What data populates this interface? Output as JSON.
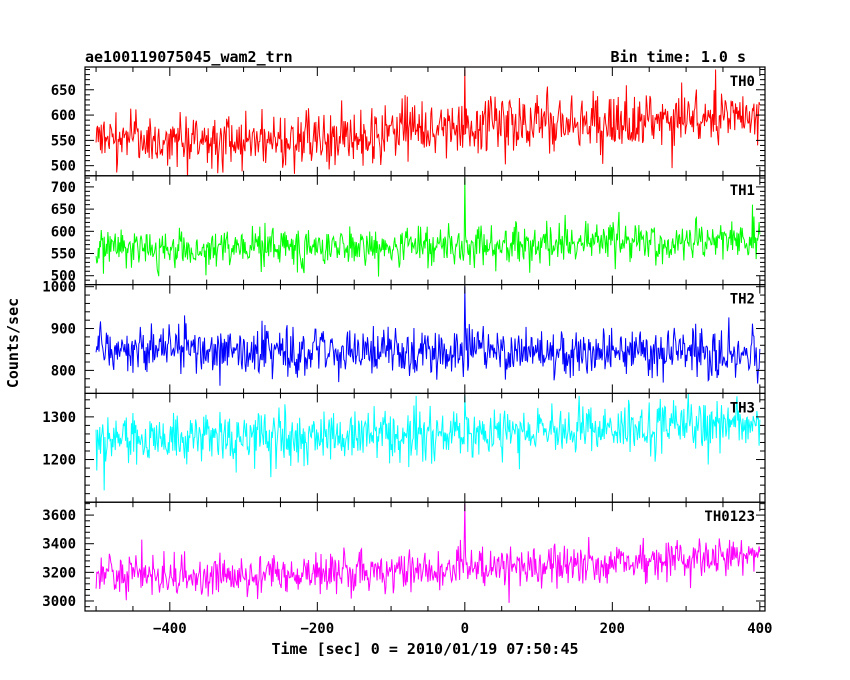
{
  "chart_data": {
    "type": "line",
    "title": "ae100119075045_wam2_trn",
    "subtitle": "Bin time: 1.0 s",
    "xlabel": "Time [sec] 0 = 2010/01/19 07:50:45",
    "ylabel": "Counts/sec",
    "xlim": [
      -515,
      407
    ],
    "x_ticks": [
      -400,
      -200,
      0,
      200,
      400
    ],
    "x_range_data": [
      -500,
      400
    ],
    "bin_time": 1.0,
    "grid": false,
    "panels": [
      {
        "name": "TH0",
        "color": "#ff0000",
        "ylim": [
          480,
          695
        ],
        "y_ticks": [
          500,
          550,
          600,
          650
        ],
        "baseline": [
          [
            -500,
            545
          ],
          [
            -200,
            550
          ],
          [
            0,
            575
          ],
          [
            200,
            585
          ],
          [
            400,
            595
          ]
        ],
        "noise": 28,
        "spikes": [
          [
            0,
            690
          ],
          [
            340,
            690
          ]
        ]
      },
      {
        "name": "TH1",
        "color": "#00ff00",
        "ylim": [
          480,
          725
        ],
        "y_ticks": [
          500,
          550,
          600,
          650,
          700
        ],
        "baseline": [
          [
            -500,
            560
          ],
          [
            -200,
            565
          ],
          [
            0,
            565
          ],
          [
            200,
            575
          ],
          [
            400,
            580
          ]
        ],
        "noise": 22,
        "spikes": [
          [
            0,
            720
          ],
          [
            390,
            660
          ]
        ]
      },
      {
        "name": "TH2",
        "color": "#0000ff",
        "ylim": [
          745,
          1005
        ],
        "y_ticks": [
          800,
          900,
          1000
        ],
        "baseline": [
          [
            -500,
            850
          ],
          [
            -200,
            845
          ],
          [
            0,
            845
          ],
          [
            200,
            845
          ],
          [
            400,
            840
          ]
        ],
        "noise": 28,
        "spikes": [
          [
            0,
            1000
          ]
        ]
      },
      {
        "name": "TH3",
        "color": "#00ffff",
        "ylim": [
          1100,
          1355
        ],
        "y_ticks": [
          1200,
          1300
        ],
        "baseline": [
          [
            -500,
            1245
          ],
          [
            -200,
            1255
          ],
          [
            0,
            1265
          ],
          [
            200,
            1275
          ],
          [
            400,
            1285
          ]
        ],
        "noise": 30,
        "spikes": [
          [
            0,
            1350
          ]
        ]
      },
      {
        "name": "TH0123",
        "color": "#ff00ff",
        "ylim": [
          2930,
          3690
        ],
        "y_ticks": [
          3000,
          3200,
          3400,
          3600
        ],
        "baseline": [
          [
            -500,
            3180
          ],
          [
            -200,
            3190
          ],
          [
            0,
            3230
          ],
          [
            200,
            3270
          ],
          [
            400,
            3300
          ]
        ],
        "noise": 70,
        "spikes": [
          [
            0,
            3680
          ]
        ]
      }
    ]
  }
}
